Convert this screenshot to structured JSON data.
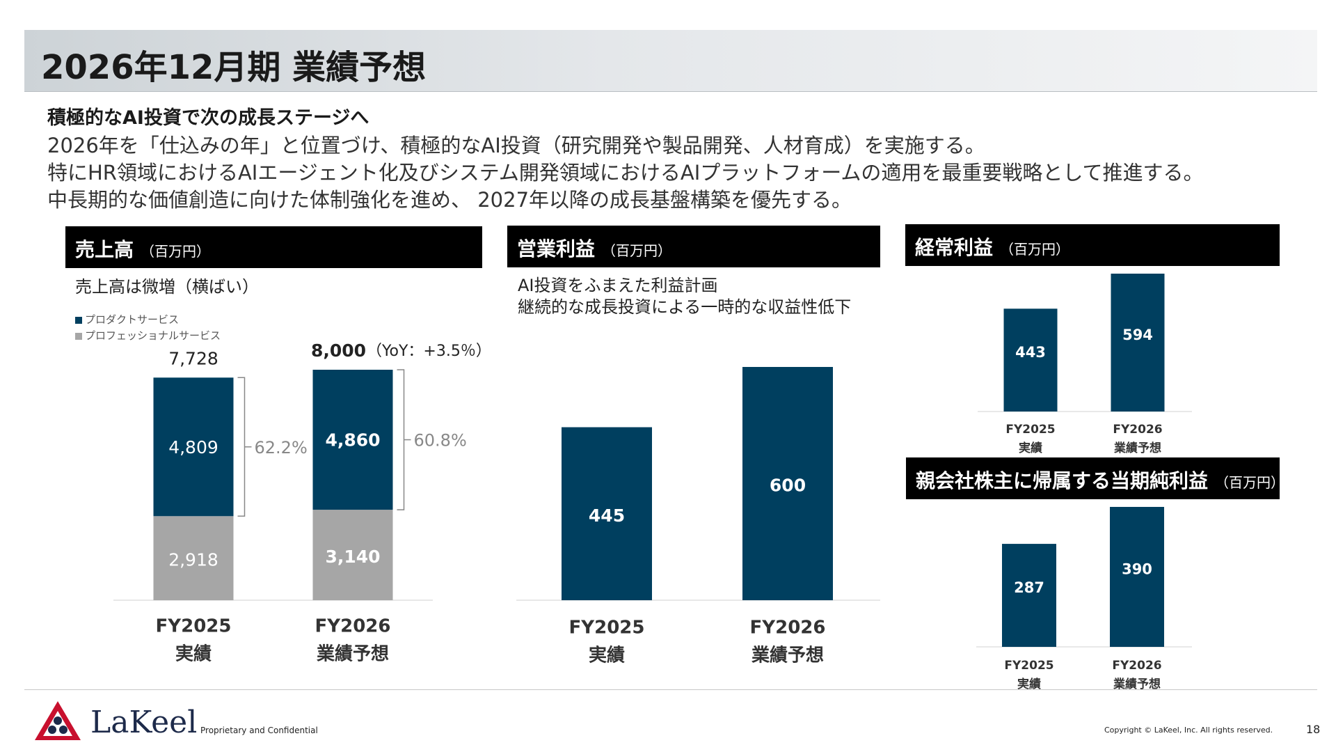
{
  "header": {
    "title": "2026年12月期 業績予想"
  },
  "summary": {
    "lead": "積極的なAI投資で次の成長ステージへ",
    "lines": [
      "2026年を「仕込みの年」と位置づけ、積極的なAI投資（研究開発や製品開発、人材育成）を実施する。",
      "特にHR領域におけるAIエージェント化及びシステム開発領域におけるAIプラットフォームの適用を最重要戦略として推進する。",
      "中長期的な価値創造に向けた体制強化を進め、 2027年以降の成長基盤構築を優先する。"
    ]
  },
  "colors": {
    "navy": "#003f5f",
    "gray": "#a6a6a6",
    "header_bg": "#000000"
  },
  "panels": {
    "sales": {
      "title": "売上高",
      "unit": "（百万円）",
      "note": "売上高は微増（横ばい）",
      "legend": [
        "プロダクトサービス",
        "プロフェッショナルサービス"
      ]
    },
    "op": {
      "title": "営業利益",
      "unit": "（百万円）",
      "note_lines": [
        "AI投資をふまえた利益計画",
        "継続的な成長投資による一時的な収益性低下"
      ]
    },
    "ord": {
      "title": "経常利益",
      "unit": "（百万円）"
    },
    "net": {
      "title": "親会社株主に帰属する当期純利益",
      "unit": "（百万円）"
    }
  },
  "chart_data": [
    {
      "type": "bar",
      "stacked": true,
      "title": "売上高",
      "categories": [
        [
          "FY2025",
          "実績"
        ],
        [
          "FY2026",
          "業績予想"
        ]
      ],
      "series": [
        {
          "name": "プロダクトサービス",
          "values": [
            4809,
            4860
          ],
          "labels": [
            "4,809",
            "4,860"
          ],
          "color": "#003f5f"
        },
        {
          "name": "プロフェッショナルサービス",
          "values": [
            2918,
            3140
          ],
          "labels": [
            "2,918",
            "3,140"
          ],
          "color": "#a6a6a6"
        }
      ],
      "totals": [
        "7,728",
        "8,000"
      ],
      "total_suffix": [
        "",
        "（YoY：+3.5％）"
      ],
      "shares": [
        "62.2%",
        "60.8%"
      ],
      "ylim": [
        0,
        8000
      ]
    },
    {
      "type": "bar",
      "title": "営業利益",
      "categories": [
        [
          "FY2025",
          "実績"
        ],
        [
          "FY2026",
          "業績予想"
        ]
      ],
      "values": [
        445,
        600
      ],
      "labels": [
        "445",
        "600"
      ],
      "ylim": [
        0,
        600
      ]
    },
    {
      "type": "bar",
      "title": "経常利益",
      "categories": [
        [
          "FY2025",
          "実績"
        ],
        [
          "FY2026",
          "業績予想"
        ]
      ],
      "values": [
        443,
        594
      ],
      "labels": [
        "443",
        "594"
      ],
      "ylim": [
        0,
        594
      ]
    },
    {
      "type": "bar",
      "title": "親会社株主に帰属する当期純利益",
      "categories": [
        [
          "FY2025",
          "実績"
        ],
        [
          "FY2026",
          "業績予想"
        ]
      ],
      "values": [
        287,
        390
      ],
      "labels": [
        "287",
        "390"
      ],
      "ylim": [
        0,
        390
      ]
    }
  ],
  "footer": {
    "logo_text": "LaKeel",
    "confidential": "Proprietary and Confidential",
    "copyright": "Copyright © LaKeel, Inc.  All rights reserved.",
    "page": "18"
  }
}
